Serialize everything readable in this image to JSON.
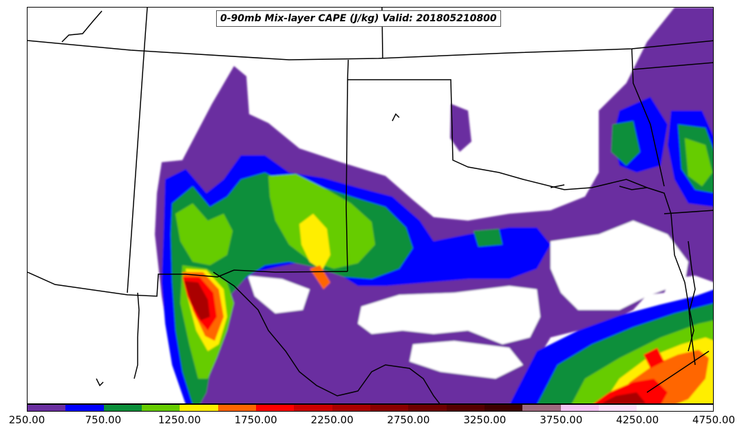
{
  "title": "0-90mb Mix-layer CAPE (J/kg) Valid: 201805210800",
  "colorbar": {
    "colors": [
      "#6a2fa0",
      "#0000ff",
      "#0a8f3a",
      "#66cc00",
      "#ffee00",
      "#ff6600",
      "#ff0000",
      "#cc0000",
      "#aa0000",
      "#8a0000",
      "#6e0000",
      "#550000",
      "#3d0000",
      "#9e6a80",
      "#f5c4f5",
      "#fde0fd",
      "#ffffff",
      "#ffffff"
    ],
    "ticks": [
      "250.00",
      "750.00",
      "1250.00",
      "1750.00",
      "2250.00",
      "2750.00",
      "3250.00",
      "3750.00",
      "4250.00",
      "4750.00"
    ],
    "range": [
      250,
      4750
    ]
  }
}
